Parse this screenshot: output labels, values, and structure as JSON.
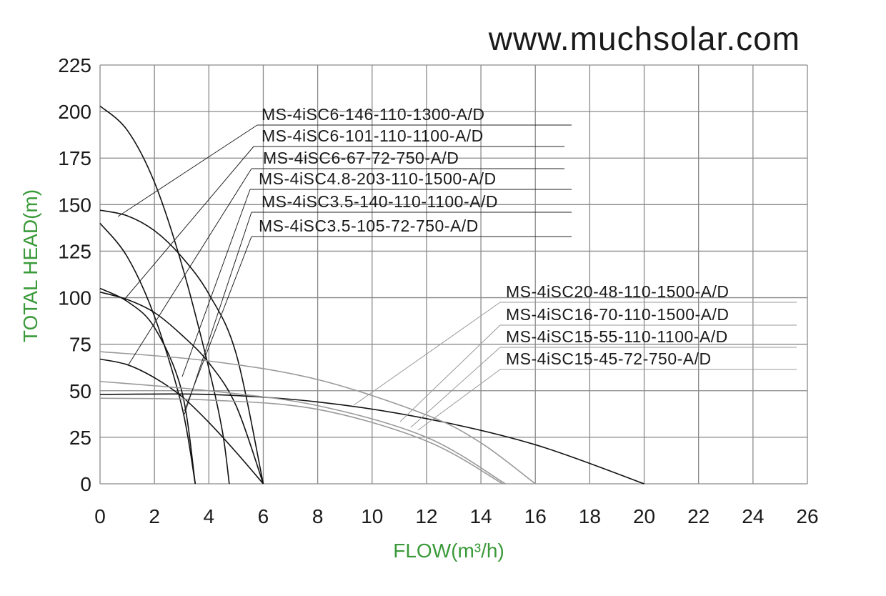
{
  "chart_data": {
    "type": "line",
    "title": "www.muchsolar.com",
    "x_label": "FLOW(m³/h)",
    "y_label": "TOTAL HEAD(m)",
    "xlim": [
      0,
      26
    ],
    "xticks": [
      0,
      2,
      4,
      6,
      8,
      10,
      12,
      14,
      16,
      18,
      20,
      22,
      24,
      26
    ],
    "ylim": [
      0,
      225
    ],
    "yticks": [
      0,
      25,
      50,
      75,
      100,
      125,
      150,
      175,
      200,
      225
    ],
    "grid": true,
    "series": [
      {
        "name": "MS-4iSC6-146-110-1300-A/D",
        "color": "#111111",
        "x": [
          0,
          1,
          2,
          3,
          4,
          5,
          6
        ],
        "values": [
          147,
          144,
          136,
          122,
          102,
          70,
          0
        ]
      },
      {
        "name": "MS-4iSC6-101-110-1100-A/D",
        "color": "#111111",
        "x": [
          0,
          1,
          2,
          3,
          4,
          5,
          6
        ],
        "values": [
          103,
          99,
          92,
          80,
          65,
          42,
          0
        ]
      },
      {
        "name": "MS-4iSC6-67-72-750-A/D",
        "color": "#111111",
        "x": [
          0,
          1,
          2,
          3,
          4,
          5,
          6
        ],
        "values": [
          67,
          64,
          57,
          47,
          33,
          17,
          0
        ]
      },
      {
        "name": "MS-4iSC4.8-203-110-1500-A/D",
        "color": "#111111",
        "x": [
          0,
          1,
          2,
          3,
          4,
          4.5,
          4.75
        ],
        "values": [
          203,
          190,
          162,
          118,
          62,
          28,
          0
        ]
      },
      {
        "name": "MS-4iSC3.5-140-110-1100-A/D",
        "color": "#111111",
        "x": [
          0,
          1,
          2,
          3,
          3.5
        ],
        "values": [
          140,
          122,
          90,
          42,
          0
        ]
      },
      {
        "name": "MS-4iSC3.5-105-72-750-A/D",
        "color": "#111111",
        "x": [
          0,
          1,
          2,
          3,
          3.5
        ],
        "values": [
          105,
          98,
          84,
          50,
          0
        ]
      },
      {
        "name": "MS-4iSC20-48-110-1500-A/D",
        "color": "#111111",
        "x": [
          0,
          4,
          8,
          12,
          16,
          20
        ],
        "values": [
          48,
          48,
          44,
          35,
          21,
          0
        ]
      },
      {
        "name": "MS-4iSC16-70-110-1500-A/D",
        "color": "#999999",
        "x": [
          0,
          4,
          8,
          12,
          14,
          16
        ],
        "values": [
          71,
          66,
          56,
          37,
          22,
          0
        ]
      },
      {
        "name": "MS-4iSC15-55-110-1100-A/D",
        "color": "#999999",
        "x": [
          0,
          4,
          8,
          12,
          14.9
        ],
        "values": [
          55,
          50,
          42,
          25,
          0
        ]
      },
      {
        "name": "MS-4iSC15-45-72-750-A/D",
        "color": "#999999",
        "x": [
          0,
          4,
          8,
          12,
          14.8
        ],
        "values": [
          46,
          45,
          40,
          23,
          0
        ]
      }
    ]
  }
}
